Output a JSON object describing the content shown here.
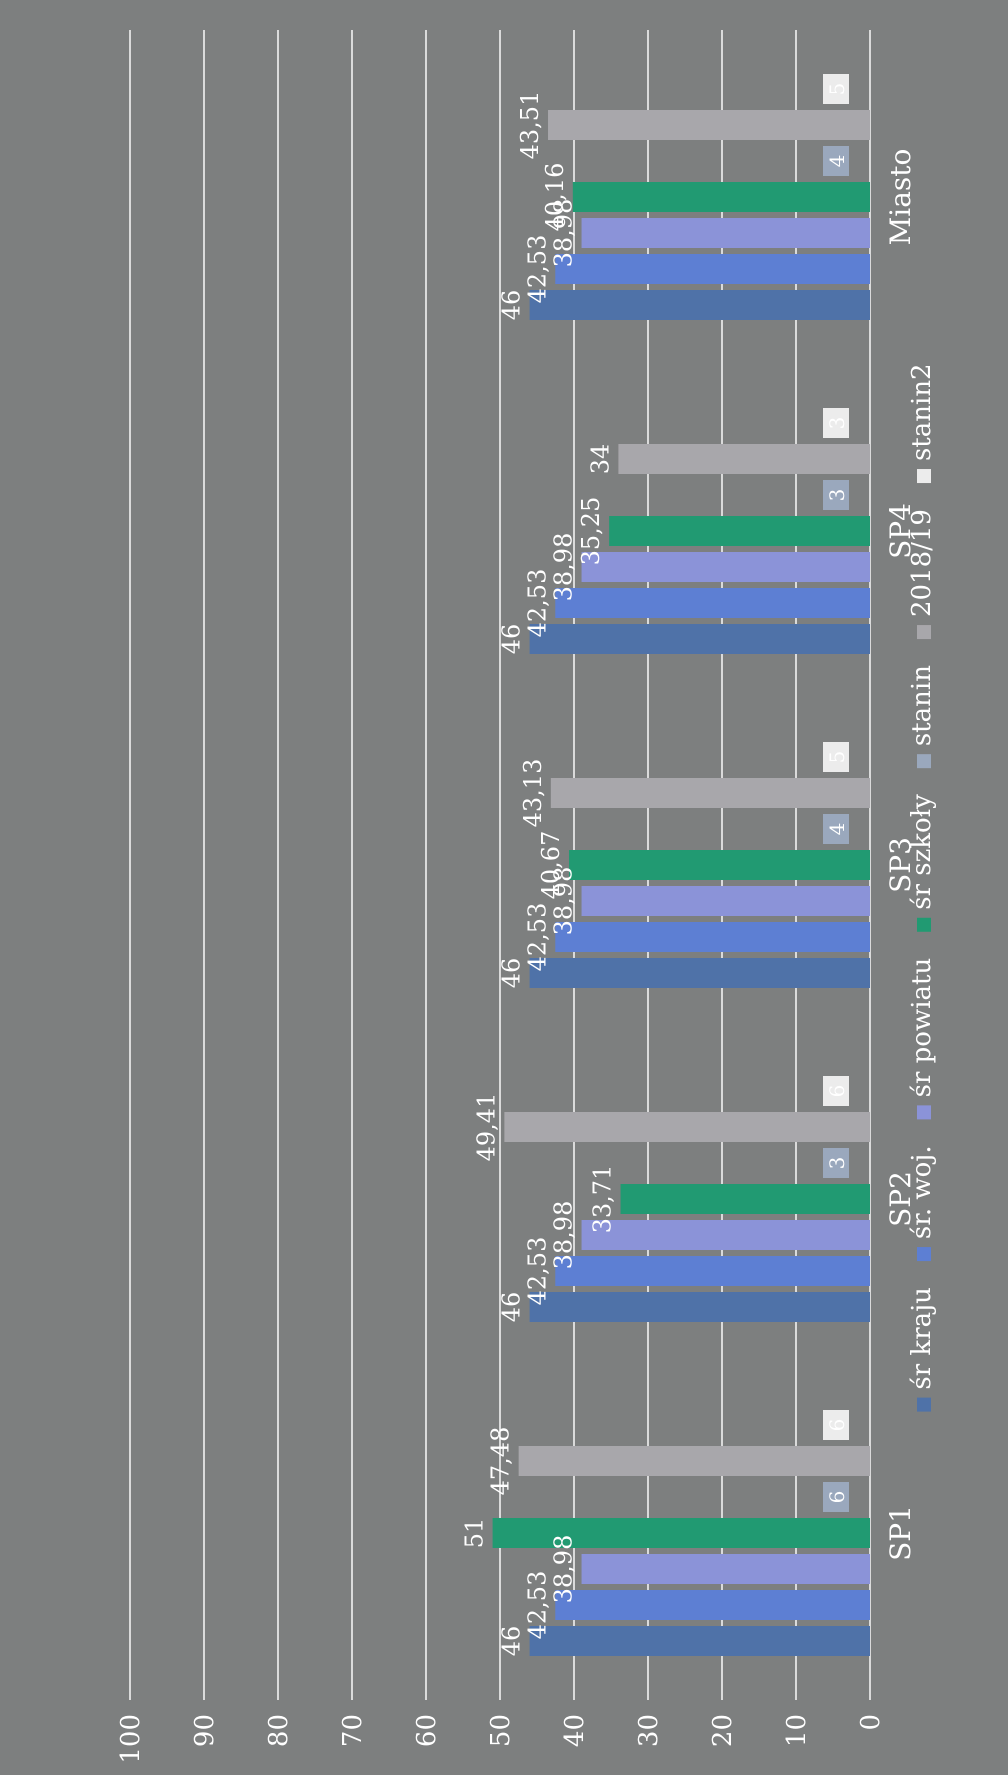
{
  "chart_data": {
    "type": "bar",
    "orientation": "vertical",
    "rotated_page": true,
    "title": "",
    "xlabel": "",
    "ylabel": "",
    "ylim": [
      0,
      100
    ],
    "yticks": [
      "0",
      "10",
      "20",
      "30",
      "40",
      "50",
      "60",
      "70",
      "80",
      "90",
      "100"
    ],
    "grid": true,
    "legend_placement": "bottom",
    "categories": [
      "SP1",
      "SP2",
      "SP3",
      "SP4",
      "Miasto"
    ],
    "series": [
      {
        "name": "śr kraju",
        "color": "#4f72a8",
        "values": [
          46,
          46,
          46,
          46,
          46
        ],
        "labels": [
          "46",
          "46",
          "46",
          "46",
          "46"
        ]
      },
      {
        "name": "śr. woj.",
        "color": "#5d7fd3",
        "values": [
          42.53,
          42.53,
          42.53,
          42.53,
          42.53
        ],
        "labels": [
          "42,53",
          "42,53",
          "42,53",
          "42,53",
          "42,53"
        ]
      },
      {
        "name": "śr powiatu",
        "color": "#8b93d8",
        "values": [
          38.98,
          38.98,
          38.98,
          38.98,
          38.98
        ],
        "labels": [
          "38,98",
          "38,98",
          "38,98",
          "38,98",
          "38,98"
        ]
      },
      {
        "name": "śr szkoły",
        "color": "#219a72",
        "values": [
          51,
          33.71,
          40.67,
          35.25,
          40.16
        ],
        "labels": [
          "51",
          "33,71",
          "40,67",
          "35,25",
          "40,16"
        ]
      },
      {
        "name": "stanin",
        "color": "#9aa8bd",
        "values": [
          6,
          3,
          4,
          3,
          4
        ],
        "labels": [
          "6",
          "3",
          "4",
          "3",
          "4"
        ],
        "as_label_box": true
      },
      {
        "name": "2018/19",
        "color": "#a8a7ab",
        "values": [
          47.48,
          49.41,
          43.13,
          34,
          43.51
        ],
        "labels": [
          "47,48",
          "49,41",
          "43,13",
          "34",
          "43,51"
        ]
      },
      {
        "name": "stanin2",
        "color": "#ececec",
        "values": [
          6,
          6,
          5,
          3,
          5
        ],
        "labels": [
          "6",
          "6",
          "5",
          "3",
          "5"
        ],
        "as_label_box": true
      }
    ]
  }
}
